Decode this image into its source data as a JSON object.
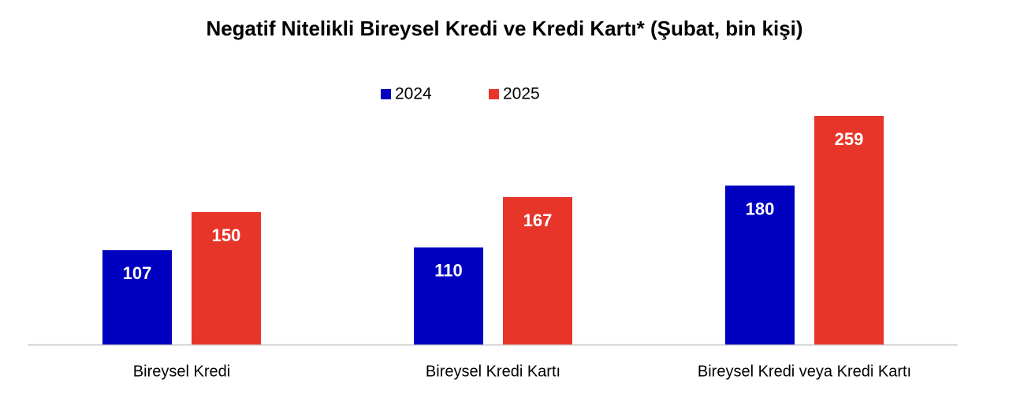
{
  "chart_data": {
    "type": "bar",
    "title": "Negatif Nitelikli Bireysel Kredi ve Kredi Kartı* (Şubat, bin kişi)",
    "categories": [
      "Bireysel Kredi",
      "Bireysel Kredi Kartı",
      "Bireysel Kredi veya Kredi Kartı"
    ],
    "series": [
      {
        "name": "2024",
        "color": "#0000c0",
        "values": [
          107,
          110,
          180
        ]
      },
      {
        "name": "2025",
        "color": "#e8352a",
        "values": [
          150,
          167,
          259
        ]
      }
    ],
    "legend": "top"
  }
}
